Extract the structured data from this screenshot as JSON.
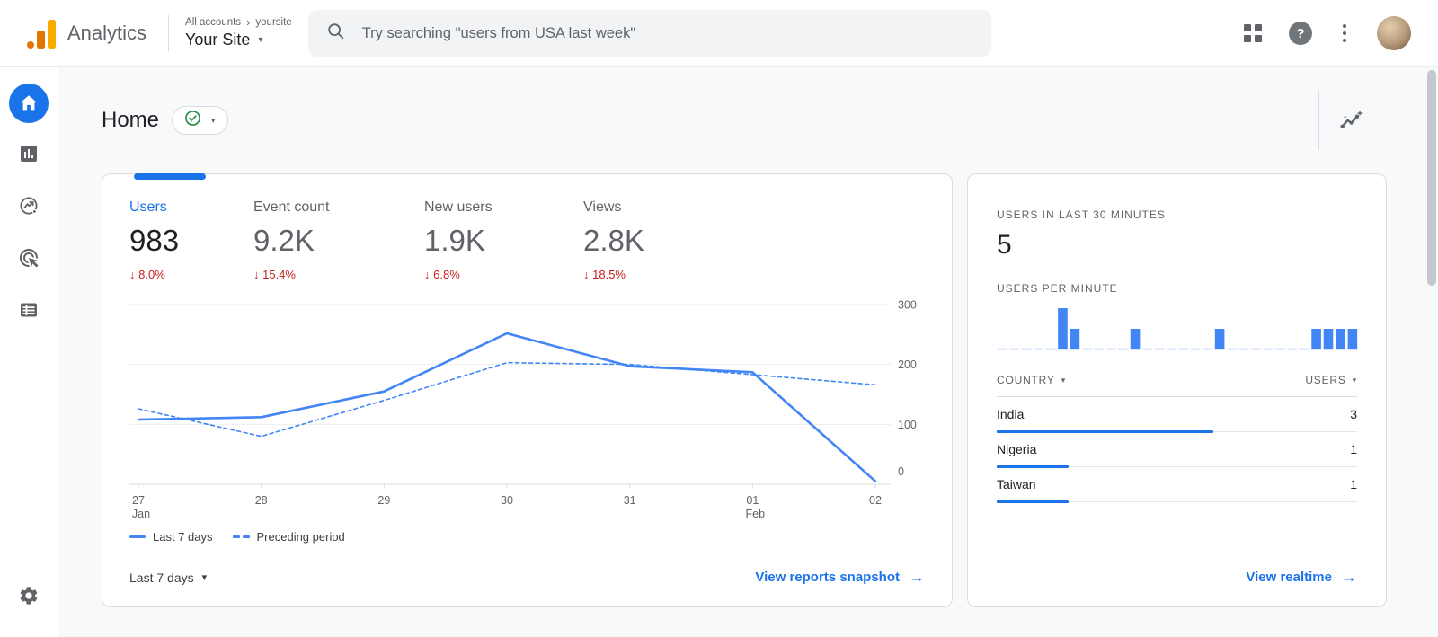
{
  "topbar": {
    "brand": "Analytics",
    "breadcrumb": {
      "root": "All accounts",
      "separator": "›",
      "current": "yoursite"
    },
    "property_name": "Your Site",
    "search_placeholder": "Try searching \"users from USA last week\""
  },
  "sidebar": {
    "items": [
      {
        "id": "home",
        "icon": "home-icon",
        "active": true
      },
      {
        "id": "reports",
        "icon": "bar-chart-icon",
        "active": false
      },
      {
        "id": "explore",
        "icon": "explore-trend-icon",
        "active": false
      },
      {
        "id": "advertising",
        "icon": "ads-target-icon",
        "active": false
      },
      {
        "id": "library",
        "icon": "list-box-icon",
        "active": false
      }
    ],
    "admin": {
      "id": "admin",
      "icon": "gear-icon"
    }
  },
  "page": {
    "title": "Home"
  },
  "metrics": [
    {
      "label": "Users",
      "value": "983",
      "delta": "8.0%",
      "direction": "down",
      "active": true
    },
    {
      "label": "Event count",
      "value": "9.2K",
      "delta": "15.4%",
      "direction": "down",
      "active": false
    },
    {
      "label": "New users",
      "value": "1.9K",
      "delta": "6.8%",
      "direction": "down",
      "active": false
    },
    {
      "label": "Views",
      "value": "2.8K",
      "delta": "18.5%",
      "direction": "down",
      "active": false
    }
  ],
  "chart_data": [
    {
      "id": "users-trend",
      "type": "line",
      "x": [
        {
          "day": "27",
          "month": "Jan"
        },
        {
          "day": "28",
          "month": ""
        },
        {
          "day": "29",
          "month": ""
        },
        {
          "day": "30",
          "month": ""
        },
        {
          "day": "31",
          "month": ""
        },
        {
          "day": "01",
          "month": "Feb"
        },
        {
          "day": "02",
          "month": ""
        }
      ],
      "series": [
        {
          "name": "Last 7 days",
          "style": "solid",
          "values": [
            108,
            112,
            155,
            252,
            197,
            187,
            5
          ]
        },
        {
          "name": "Preceding period",
          "style": "dashed",
          "values": [
            126,
            80,
            140,
            203,
            200,
            183,
            166
          ]
        }
      ],
      "ylim": [
        0,
        300
      ],
      "yticks": [
        0,
        100,
        200,
        300
      ],
      "grid": true,
      "legend_position": "bottom-left"
    },
    {
      "id": "users-per-minute",
      "type": "bar",
      "values": [
        0,
        0,
        0,
        0,
        0,
        2,
        1,
        0,
        0,
        0,
        0,
        1,
        0,
        0,
        0,
        0,
        0,
        0,
        1,
        0,
        0,
        0,
        0,
        0,
        0,
        0,
        1,
        1,
        1,
        1
      ],
      "ylim": [
        0,
        2
      ]
    }
  ],
  "main_card": {
    "date_range_label": "Last 7 days",
    "snapshot_link": "View reports snapshot"
  },
  "realtime": {
    "users_30min_label": "USERS IN LAST 30 MINUTES",
    "users_30min_value": "5",
    "per_minute_label": "USERS PER MINUTE",
    "table": {
      "country_header": "COUNTRY",
      "users_header": "USERS",
      "rows": [
        {
          "country": "India",
          "users": "3",
          "bar_pct": 60
        },
        {
          "country": "Nigeria",
          "users": "1",
          "bar_pct": 20
        },
        {
          "country": "Taiwan",
          "users": "1",
          "bar_pct": 20
        }
      ]
    },
    "realtime_link": "View realtime"
  },
  "icons": {
    "down_arrow": "↓",
    "caret_down": "▾",
    "arrow_right": "→",
    "help_glyph": "?"
  },
  "colors": {
    "accent_blue": "#1a73e8",
    "chart_blue": "#4285f4",
    "chart_blue_light": "#a8c7fa",
    "negative_red": "#c5221f",
    "logo_orange": "#f9ab00",
    "logo_dark_orange": "#e37400",
    "success_green": "#1e8e3e"
  }
}
